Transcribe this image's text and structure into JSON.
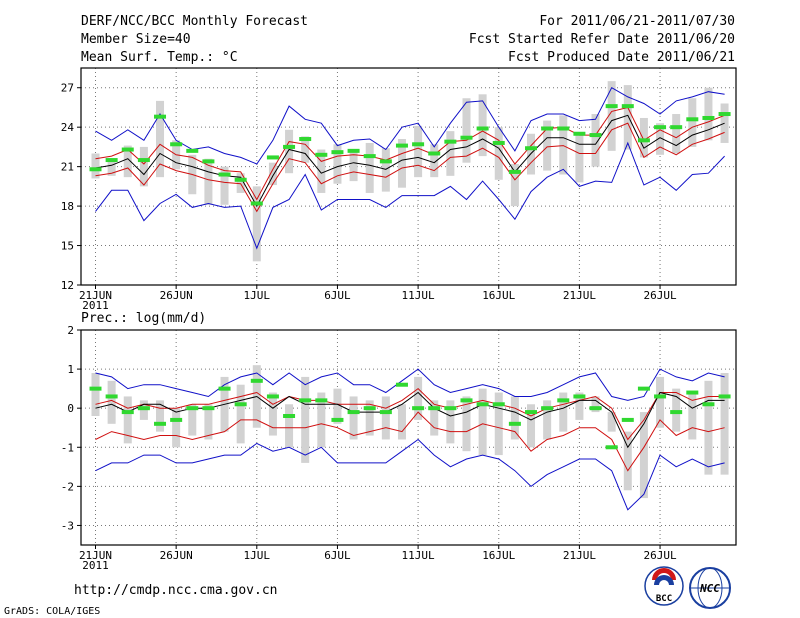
{
  "header": {
    "title": "DERF/NCC/BCC Monthly Forecast",
    "member_size": "Member Size=40",
    "period": "For 2011/06/21-2011/07/30",
    "start_date": "Fcst Started Refer Date 2011/06/20",
    "produced_date": "Fcst Produced Date 2011/06/21"
  },
  "footer": {
    "url": "http://cmdp.ncc.cma.gov.cn",
    "grads_credit": "GrADS: COLA/IGES",
    "logo_bcc_text": "BCC",
    "logo_ncc_text": "NCC"
  },
  "colors": {
    "max_line": "#1010c8",
    "min_line": "#1010c8",
    "upper_line": "#d01010",
    "lower_line": "#d01010",
    "mean_line": "#000000",
    "box": "#d2d2d2",
    "marker": "#30d830",
    "grid": "#777777"
  },
  "chart_data": [
    {
      "type": "line",
      "title": "Mean Surf. Temp.: °C",
      "unit": "°C",
      "ylim": [
        12,
        28.5
      ],
      "yticks": [
        12,
        15,
        18,
        21,
        24,
        27
      ],
      "x_tick_labels": [
        "21JUN",
        "26JUN",
        "1JUL",
        "6JUL",
        "11JUL",
        "16JUL",
        "21JUL",
        "26JUL"
      ],
      "x_tick_index": [
        0,
        5,
        10,
        15,
        20,
        25,
        30,
        35
      ],
      "x_year_label": "2011",
      "n_days": 40,
      "series": [
        {
          "name": "max",
          "values": [
            23.7,
            23.0,
            23.8,
            23.0,
            25.0,
            23.0,
            22.3,
            22.5,
            22.0,
            21.7,
            21.2,
            23.0,
            25.6,
            24.6,
            24.3,
            22.6,
            23.0,
            23.1,
            22.3,
            24.0,
            24.3,
            22.5,
            24.3,
            25.9,
            26.0,
            24.0,
            22.2,
            24.5,
            25.0,
            25.0,
            24.5,
            24.6,
            27.0,
            26.3,
            25.8,
            25.0,
            26.0,
            26.3,
            26.7,
            26.5
          ]
        },
        {
          "name": "upper",
          "values": [
            21.6,
            21.8,
            22.3,
            21.2,
            22.7,
            21.9,
            21.7,
            21.1,
            20.7,
            20.6,
            18.5,
            20.8,
            22.9,
            22.7,
            21.4,
            21.8,
            21.9,
            21.8,
            21.5,
            22.0,
            22.4,
            21.9,
            22.9,
            23.0,
            23.7,
            23.0,
            21.2,
            22.6,
            23.9,
            24.0,
            23.4,
            23.4,
            25.2,
            25.5,
            23.0,
            23.8,
            23.2,
            24.0,
            24.4,
            24.9
          ]
        },
        {
          "name": "mean",
          "values": [
            20.9,
            21.1,
            21.6,
            20.4,
            22.0,
            21.3,
            21.0,
            20.6,
            20.3,
            20.2,
            18.0,
            20.3,
            22.3,
            22.0,
            20.5,
            21.0,
            21.3,
            21.1,
            20.8,
            21.5,
            21.7,
            21.3,
            22.3,
            22.5,
            23.1,
            22.4,
            20.6,
            22.0,
            23.2,
            23.2,
            22.7,
            22.7,
            24.5,
            24.9,
            22.4,
            23.2,
            22.6,
            23.4,
            23.8,
            24.3
          ]
        },
        {
          "name": "lower",
          "values": [
            20.3,
            20.5,
            20.9,
            19.6,
            21.2,
            20.7,
            20.4,
            20.0,
            19.8,
            19.7,
            17.6,
            19.7,
            21.6,
            21.3,
            19.7,
            20.3,
            20.6,
            20.4,
            20.2,
            20.9,
            21.1,
            20.7,
            21.7,
            21.8,
            22.4,
            21.7,
            20.0,
            21.3,
            22.5,
            22.6,
            22.0,
            22.0,
            23.8,
            24.3,
            21.7,
            22.5,
            21.9,
            22.7,
            23.1,
            23.6
          ]
        },
        {
          "name": "min",
          "values": [
            17.6,
            19.2,
            19.2,
            16.9,
            18.2,
            18.9,
            17.9,
            18.2,
            17.9,
            18.0,
            14.8,
            17.9,
            18.5,
            20.4,
            17.7,
            18.5,
            18.5,
            18.5,
            17.9,
            18.8,
            18.8,
            18.8,
            19.5,
            18.5,
            19.9,
            18.5,
            17.0,
            19.1,
            20.2,
            20.8,
            19.5,
            19.9,
            19.8,
            22.8,
            19.6,
            20.2,
            19.2,
            20.4,
            20.5,
            21.8
          ]
        },
        {
          "name": "box_top",
          "values": [
            22.0,
            21.6,
            22.6,
            22.5,
            26.0,
            23.0,
            21.9,
            21.6,
            21.0,
            20.5,
            19.5,
            21.3,
            23.8,
            23.3,
            22.3,
            22.7,
            22.2,
            22.8,
            22.4,
            23.1,
            24.1,
            22.7,
            23.7,
            26.2,
            26.5,
            24.0,
            21.2,
            23.5,
            24.5,
            24.9,
            23.6,
            25.0,
            27.5,
            27.2,
            24.7,
            24.3,
            25.0,
            26.2,
            27.0,
            25.8
          ]
        },
        {
          "name": "box_bottom",
          "values": [
            20.1,
            20.3,
            20.2,
            19.5,
            20.2,
            20.8,
            18.9,
            18.1,
            18.1,
            19.0,
            13.8,
            19.6,
            20.5,
            21.3,
            19.0,
            19.7,
            19.9,
            19.0,
            19.1,
            19.4,
            20.2,
            20.2,
            20.3,
            21.3,
            21.8,
            20.0,
            18.0,
            20.4,
            20.7,
            20.4,
            19.8,
            21.0,
            22.2,
            22.3,
            21.7,
            21.9,
            22.0,
            22.5,
            23.0,
            22.8
          ]
        },
        {
          "name": "marker",
          "values": [
            20.8,
            21.5,
            22.3,
            21.5,
            24.8,
            22.7,
            22.2,
            21.4,
            20.4,
            20.0,
            18.2,
            21.7,
            22.5,
            23.1,
            21.9,
            22.1,
            22.2,
            21.8,
            21.4,
            22.6,
            22.7,
            22.0,
            22.9,
            23.2,
            23.9,
            22.8,
            20.6,
            22.4,
            23.9,
            23.9,
            23.5,
            23.4,
            25.6,
            25.6,
            23.0,
            24.0,
            24.0,
            24.6,
            24.7,
            25.0
          ]
        }
      ]
    },
    {
      "type": "line",
      "title": "Prec.: log(mm/d)",
      "unit": "log(mm/d)",
      "ylim": [
        -3.5,
        2
      ],
      "yticks": [
        -3,
        -2,
        -1,
        0,
        1,
        2
      ],
      "x_tick_labels": [
        "21JUN",
        "26JUN",
        "1JUL",
        "6JUL",
        "11JUL",
        "16JUL",
        "21JUL",
        "26JUL"
      ],
      "x_tick_index": [
        0,
        5,
        10,
        15,
        20,
        25,
        30,
        35
      ],
      "x_year_label": "2011",
      "n_days": 40,
      "series": [
        {
          "name": "max",
          "values": [
            0.9,
            0.8,
            0.5,
            0.6,
            0.6,
            0.5,
            0.4,
            0.3,
            0.6,
            0.8,
            0.9,
            0.6,
            0.9,
            0.6,
            0.8,
            0.9,
            0.6,
            0.6,
            0.4,
            0.7,
            1.0,
            0.6,
            0.4,
            0.5,
            0.6,
            0.5,
            0.3,
            0.3,
            0.4,
            0.6,
            0.8,
            0.9,
            0.3,
            0.2,
            0.3,
            1.0,
            0.8,
            0.7,
            0.9,
            0.8
          ]
        },
        {
          "name": "upper",
          "values": [
            0.1,
            0.2,
            0.0,
            0.1,
            0.0,
            0.0,
            0.1,
            0.1,
            0.2,
            0.3,
            0.4,
            0.1,
            0.3,
            0.2,
            0.2,
            0.1,
            0.1,
            0.1,
            0.0,
            0.2,
            0.5,
            0.1,
            0.0,
            0.1,
            0.2,
            0.1,
            0.0,
            -0.2,
            0.0,
            0.1,
            0.2,
            0.3,
            0.0,
            -0.8,
            -0.3,
            0.4,
            0.4,
            0.2,
            0.3,
            0.3
          ]
        },
        {
          "name": "mean",
          "values": [
            0.0,
            0.1,
            -0.1,
            0.1,
            0.1,
            -0.1,
            0.0,
            0.0,
            0.1,
            0.2,
            0.3,
            0.0,
            0.3,
            0.1,
            0.1,
            0.1,
            -0.1,
            -0.1,
            -0.1,
            0.1,
            0.4,
            0.0,
            -0.2,
            -0.1,
            0.1,
            0.0,
            -0.1,
            -0.3,
            -0.1,
            0.0,
            0.2,
            0.2,
            -0.1,
            -1.0,
            -0.4,
            0.4,
            0.3,
            0.0,
            0.2,
            0.2
          ]
        },
        {
          "name": "lower",
          "values": [
            -0.8,
            -0.6,
            -0.7,
            -0.8,
            -0.7,
            -0.7,
            -0.8,
            -0.7,
            -0.6,
            -0.3,
            -0.3,
            -0.5,
            -0.5,
            -0.5,
            -0.4,
            -0.5,
            -0.7,
            -0.6,
            -0.5,
            -0.6,
            -0.1,
            -0.5,
            -0.6,
            -0.6,
            -0.4,
            -0.5,
            -0.6,
            -1.1,
            -0.8,
            -0.7,
            -0.5,
            -0.5,
            -0.8,
            -1.6,
            -1.0,
            -0.3,
            -0.7,
            -0.5,
            -0.6,
            -0.5
          ]
        },
        {
          "name": "min",
          "values": [
            -1.6,
            -1.4,
            -1.4,
            -1.2,
            -1.2,
            -1.4,
            -1.4,
            -1.3,
            -1.2,
            -1.2,
            -0.9,
            -1.1,
            -1.0,
            -1.2,
            -1.0,
            -1.4,
            -1.4,
            -1.4,
            -1.4,
            -1.1,
            -0.8,
            -1.2,
            -1.5,
            -1.3,
            -1.2,
            -1.3,
            -1.6,
            -2.0,
            -1.7,
            -1.5,
            -1.3,
            -1.3,
            -1.6,
            -2.6,
            -2.2,
            -1.2,
            -1.5,
            -1.3,
            -1.5,
            -1.4
          ]
        },
        {
          "name": "box_top",
          "values": [
            0.9,
            0.7,
            0.3,
            0.2,
            0.2,
            0.0,
            0.1,
            0.1,
            0.8,
            0.6,
            1.1,
            0.4,
            0.1,
            0.8,
            0.4,
            0.5,
            0.3,
            0.2,
            0.3,
            0.1,
            0.8,
            0.2,
            0.2,
            0.3,
            0.5,
            0.4,
            0.3,
            0.1,
            0.2,
            0.4,
            0.4,
            0.3,
            -0.1,
            -0.6,
            -0.1,
            0.8,
            0.5,
            0.4,
            0.7,
            0.9
          ]
        },
        {
          "name": "box_bottom",
          "values": [
            -0.2,
            -0.4,
            -0.9,
            -0.3,
            -0.6,
            -1.0,
            -0.7,
            -0.8,
            -0.6,
            -0.9,
            -0.5,
            -0.7,
            -1.0,
            -1.4,
            -1.0,
            -0.4,
            -0.8,
            -0.7,
            -0.8,
            -0.8,
            -0.3,
            -0.7,
            -0.9,
            -1.1,
            -1.2,
            -1.2,
            -0.8,
            -1.0,
            -0.8,
            -0.6,
            -0.3,
            -0.1,
            -0.6,
            -2.1,
            -2.3,
            -0.5,
            -0.6,
            -0.8,
            -1.7,
            -1.7
          ]
        },
        {
          "name": "marker",
          "values": [
            0.5,
            0.3,
            -0.1,
            0.0,
            -0.4,
            -0.3,
            0.0,
            0.0,
            0.5,
            0.1,
            0.7,
            0.3,
            -0.2,
            0.2,
            0.2,
            -0.3,
            -0.1,
            0.0,
            -0.1,
            0.6,
            0.0,
            0.0,
            0.0,
            0.2,
            0.1,
            0.1,
            -0.4,
            -0.1,
            0.0,
            0.2,
            0.3,
            0.0,
            -1.0,
            -0.3,
            0.5,
            0.3,
            -0.1,
            0.4,
            0.1,
            0.3
          ]
        }
      ]
    }
  ]
}
